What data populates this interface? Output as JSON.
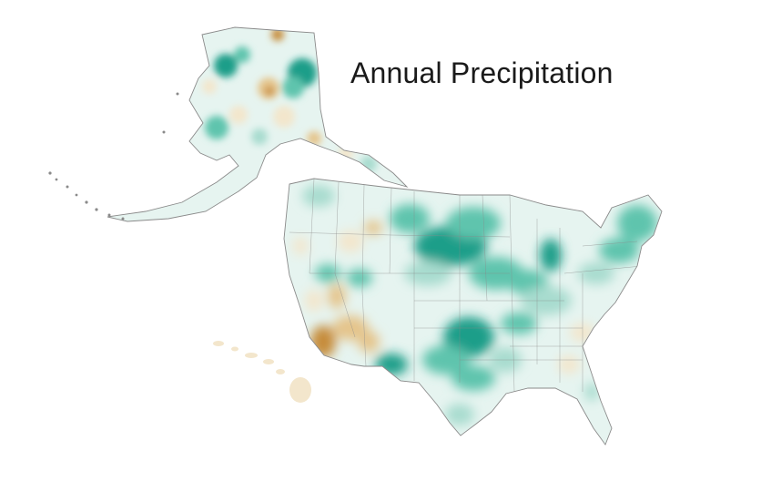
{
  "title": "Annual Precipitation",
  "palette": {
    "wet_strong": "#1f9e89",
    "wet_medium": "#5ec4ad",
    "wet_light": "#a8dccf",
    "neutral": "#e6f4f0",
    "dry_light": "#f3e6cc",
    "dry_medium": "#e5c58c",
    "dry_strong": "#c68c3a",
    "border": "#8a8a8a"
  }
}
